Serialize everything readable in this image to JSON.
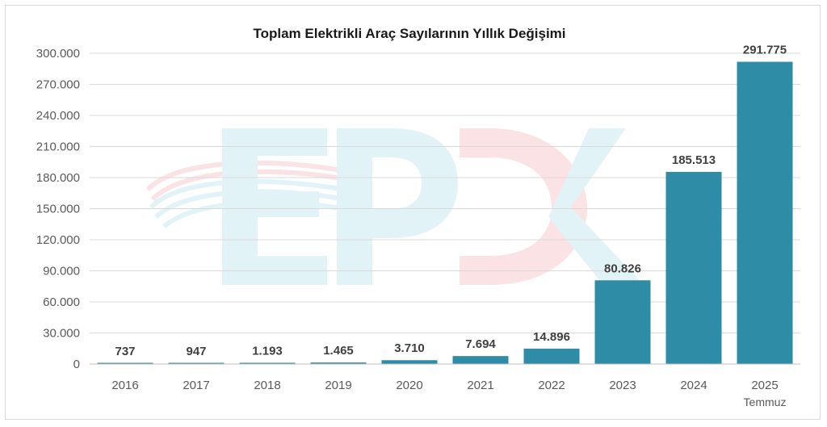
{
  "chart_data": {
    "type": "bar",
    "title": "Toplam Elektrikli Araç Sayılarının Yıllık Değişimi",
    "categories": [
      "2016",
      "2017",
      "2018",
      "2019",
      "2020",
      "2021",
      "2022",
      "2023",
      "2024",
      "2025"
    ],
    "category_sublabels": [
      "",
      "",
      "",
      "",
      "",
      "",
      "",
      "",
      "",
      "Temmuz"
    ],
    "values": [
      737,
      947,
      1193,
      1465,
      3710,
      7694,
      14896,
      80826,
      185513,
      291775
    ],
    "data_labels": [
      "737",
      "947",
      "1.193",
      "1.465",
      "3.710",
      "7.694",
      "14.896",
      "80.826",
      "185.513",
      "291.775"
    ],
    "ylim": [
      0,
      300000
    ],
    "yticks": [
      0,
      30000,
      60000,
      90000,
      120000,
      150000,
      180000,
      210000,
      240000,
      270000,
      300000
    ],
    "ytick_labels": [
      "0",
      "30.000",
      "60.000",
      "90.000",
      "120.000",
      "150.000",
      "180.000",
      "210.000",
      "240.000",
      "270.000",
      "300.000"
    ],
    "xlabel": "",
    "ylabel": "",
    "grid": true,
    "bar_color": "#2e8ca6",
    "grid_color": "#d9d9d9"
  },
  "watermark": {
    "text": "EPDK",
    "colors": [
      "#29a9cf",
      "#e5283a"
    ]
  }
}
